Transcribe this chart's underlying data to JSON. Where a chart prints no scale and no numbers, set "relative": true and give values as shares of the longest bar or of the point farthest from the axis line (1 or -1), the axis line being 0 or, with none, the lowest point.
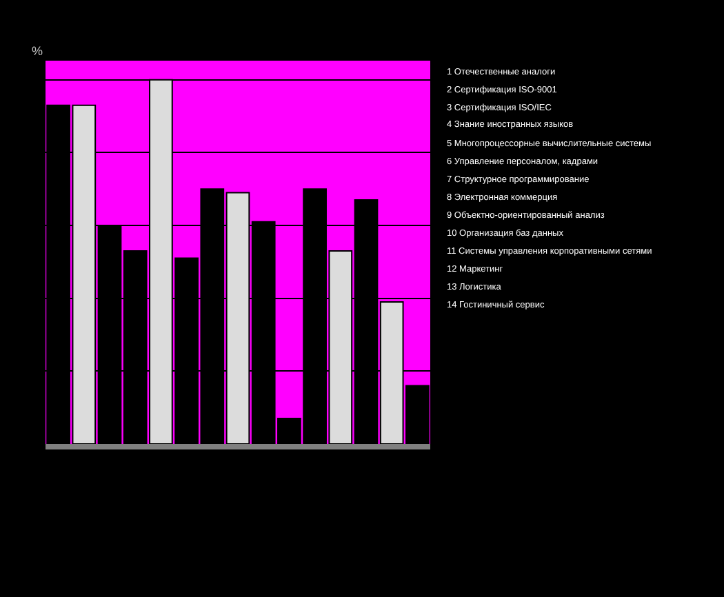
{
  "chart_data": {
    "type": "bar",
    "relative": true,
    "ylabel": "%",
    "grid": "y",
    "categories": [
      null,
      null,
      null,
      null,
      null,
      null,
      null,
      null,
      null,
      null,
      null,
      null,
      null,
      null,
      null
    ],
    "values": [
      0.93,
      0.93,
      0.6,
      0.53,
      1,
      0.51,
      0.7,
      0.69,
      0.61,
      0.07,
      0.7,
      0.53,
      0.67,
      0.39,
      0.16
    ],
    "colors": [
      "#000000",
      "#dcdcdc",
      "#000000",
      "#000000",
      "#dcdcdc",
      "#000000",
      "#000000",
      "#dcdcdc",
      "#000000",
      "#000000",
      "#000000",
      "#dcdcdc",
      "#000000",
      "#dcdcdc",
      "#000000"
    ],
    "annotations": [
      "1 Отечественные аналоги",
      "2 Сертификация ISO-9001",
      "3 Сертификация ISO/IEC",
      "4 Знание иностранных языков",
      "5 Многопроцессорные вычислительные системы",
      "6 Управление персоналом, кадрами",
      "7 Структурное программирование",
      "8 Электронная коммерция",
      "9 Объектно-ориентированный анализ",
      "10 Организация баз данных",
      "11 Системы управления корпоративными сетями",
      "12 Маркетинг",
      "13 Логистика",
      "14 Гостиничный сервис"
    ]
  }
}
